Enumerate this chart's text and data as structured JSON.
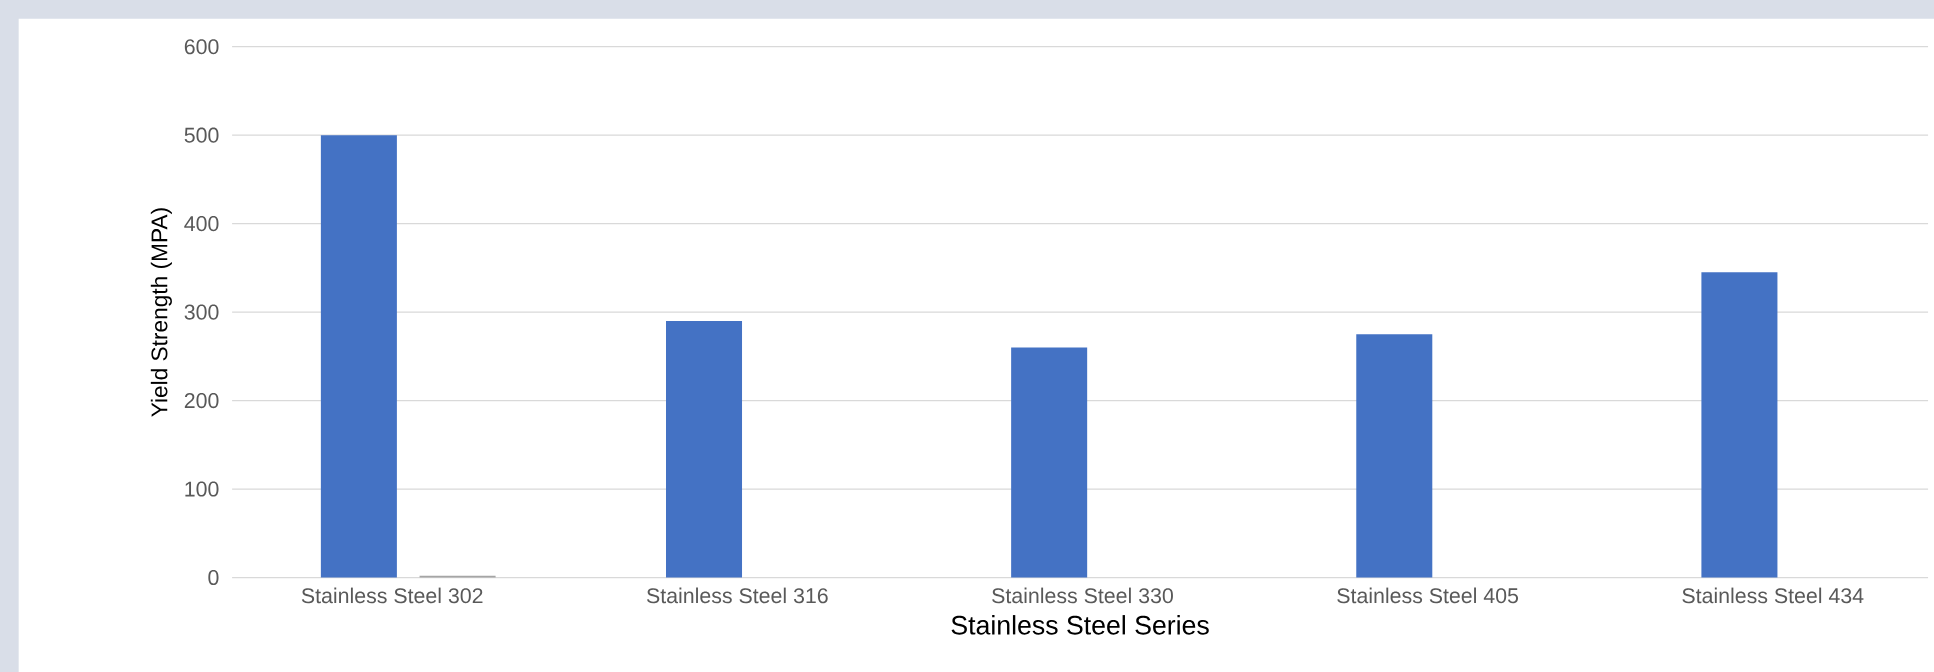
{
  "chart_data": {
    "type": "bar",
    "xlabel": "Stainless Steel Series",
    "ylabel": "Yield Strength (MPA)",
    "categories": [
      "Stainless Steel 302",
      "Stainless Steel 316",
      "Stainless Steel 330",
      "Stainless Steel 405",
      "Stainless Steel 434"
    ],
    "series": [
      {
        "color": "#4472c4",
        "values": [
          500,
          290,
          260,
          275,
          345
        ]
      },
      {
        "color": "#a5a5a5",
        "values": [
          2,
          0,
          0,
          0,
          0
        ]
      }
    ],
    "ylim": [
      0,
      600
    ],
    "yticks": [
      0,
      100,
      200,
      300,
      400,
      500,
      600
    ],
    "grid": "y"
  }
}
